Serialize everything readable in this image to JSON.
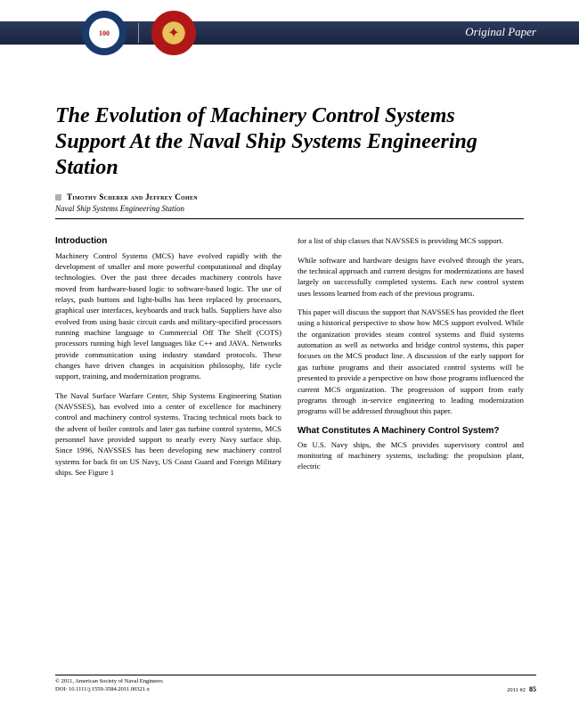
{
  "header": {
    "badge1_text": "100",
    "paper_type": "Original Paper",
    "banner_bg": "#1e2d4f",
    "badge1_colors": {
      "outer": "#1a3a6e",
      "inner": "#ffffff"
    },
    "badge2_colors": {
      "outer": "#b01818",
      "inner": "#e8c25a"
    }
  },
  "title": "The Evolution of Machinery Control Systems Support At the Naval Ship Systems Engineering Station",
  "authors": "Timothy Scherer and Jeffrey Cohen",
  "affiliation": "Naval Ship Systems Engineering Station",
  "sections": {
    "intro_head": "Introduction",
    "intro_p1": "Machinery Control Systems (MCS) have evolved rapidly with the development of smaller and more powerful computational and display technologies. Over the past three decades machinery controls have moved from hardware-based logic to software-based logic. The use of relays, push buttons and light-bulbs has been replaced by processors, graphical user interfaces, keyboards and track balls. Suppliers have also evolved from using basic circuit cards and military-specified processors running machine language to Commercial Off The Shelf (COTS) processors running high level languages like C++ and JAVA. Networks provide communication using industry standard protocols. These changes have driven changes in acquisition philosophy, life cycle support, training, and modernization programs.",
    "intro_p2": "The Naval Surface Warfare Center, Ship Systems Engineering Station (NAVSSES), has evolved into a center of excellence for machinery control and machinery control systems. Tracing technical roots back to the advent of boiler controls and later gas turbine control systems, MCS personnel have provided support to nearly every Navy surface ship. Since 1996, NAVSSES has been developing new machinery control systems for back fit on US Navy, US Coast Guard and Foreign Military ships. See Figure 1",
    "col2_p1": "for a list of ship classes that NAVSSES is providing MCS support.",
    "col2_p2": "While software and hardware designs have evolved through the years, the technical approach and current designs for modernizations are based largely on successfully completed systems. Each new control system uses lessons learned from each of the previous programs.",
    "col2_p3": "This paper will discuss the support that NAVSSES has provided the fleet using a historical perspective to show how MCS support evolved. While the organization provides steam control systems and fluid systems automation as well as networks and bridge control systems, this paper focuses on the MCS product line. A discussion of the early support for gas turbine programs and their associated control systems will be presented to provide a perspective on how those programs influenced the current MCS organization. The progression of support from early programs through in-service engineering to leading modernization programs will be addressed throughout this paper.",
    "what_head": "What Constitutes A Machinery Control System?",
    "what_p1": "On U.S. Navy ships, the MCS provides supervisory control and monitoring of machinery systems, including: the propulsion plant, electric"
  },
  "footer": {
    "copyright": "© 2011, American Society of Naval Engineers",
    "doi": "DOI: 10.1111/j.1559-3584.2011.00321.x",
    "issue": "2011 #2",
    "page": "85"
  }
}
